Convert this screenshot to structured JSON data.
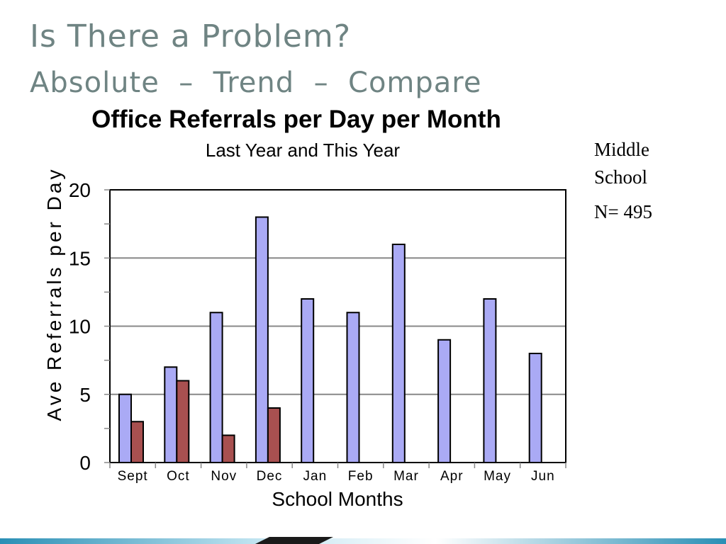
{
  "slide": {
    "title": "Is There a Problem?",
    "subtitle": "Absolute  –  Trend  –  Compare"
  },
  "side_note": {
    "line1": "Middle",
    "line2": "School",
    "n_label": "N= 495"
  },
  "colors": {
    "title_text": "#6f8483",
    "series_this_year": "#aaaaf5",
    "series_last_year": "#a85050",
    "gridline": "#888888",
    "bottom_bar_dark": "#1a1a1a",
    "bottom_bar_accent": "#2a8fb5"
  },
  "chart_data": {
    "type": "bar",
    "title": "Office Referrals per Day per Month",
    "subtitle": "Last Year and This Year",
    "xlabel": "School Months",
    "ylabel": "Ave Referrals per Day",
    "categories": [
      "Sept",
      "Oct",
      "Nov",
      "Dec",
      "Jan",
      "Feb",
      "Mar",
      "Apr",
      "May",
      "Jun"
    ],
    "series": [
      {
        "values": [
          5,
          7,
          11,
          18,
          12,
          11,
          16,
          9,
          12,
          8
        ],
        "color": "#aaaaf5"
      },
      {
        "values": [
          3,
          6,
          2,
          4,
          0,
          0,
          0,
          0,
          0,
          0
        ],
        "color": "#a85050"
      }
    ],
    "ylim": [
      0,
      20
    ],
    "yticks": [
      0,
      5,
      10,
      15,
      20
    ],
    "grid": true,
    "legend": "none"
  }
}
